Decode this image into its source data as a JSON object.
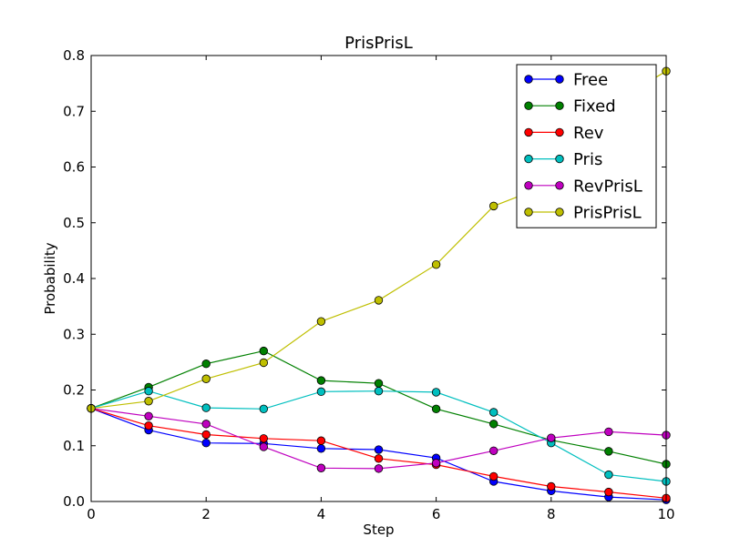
{
  "chart_data": {
    "type": "line",
    "title": "PrisPrisL",
    "xlabel": "Step",
    "ylabel": "Probability",
    "xlim": [
      0,
      10
    ],
    "ylim": [
      0,
      0.8
    ],
    "xticks": [
      "0",
      "2",
      "4",
      "6",
      "8",
      "10"
    ],
    "yticks": [
      "0.0",
      "0.1",
      "0.2",
      "0.3",
      "0.4",
      "0.5",
      "0.6",
      "0.7",
      "0.8"
    ],
    "grid": false,
    "legend_position": "top-right",
    "x": [
      0,
      1,
      2,
      3,
      4,
      5,
      6,
      7,
      8,
      9,
      10
    ],
    "series": [
      {
        "name": "Free",
        "color": "#0000ff",
        "values": [
          0.167,
          0.128,
          0.105,
          0.104,
          0.095,
          0.093,
          0.078,
          0.036,
          0.019,
          0.008,
          0.003
        ]
      },
      {
        "name": "Fixed",
        "color": "#008000",
        "values": [
          0.167,
          0.205,
          0.247,
          0.27,
          0.217,
          0.212,
          0.166,
          0.139,
          0.11,
          0.09,
          0.067
        ]
      },
      {
        "name": "Rev",
        "color": "#ff0000",
        "values": [
          0.167,
          0.136,
          0.12,
          0.113,
          0.109,
          0.077,
          0.066,
          0.045,
          0.027,
          0.017,
          0.006
        ]
      },
      {
        "name": "Pris",
        "color": "#00bfbf",
        "values": [
          0.167,
          0.198,
          0.168,
          0.166,
          0.197,
          0.198,
          0.196,
          0.16,
          0.105,
          0.048,
          0.036
        ]
      },
      {
        "name": "RevPrisL",
        "color": "#bf00bf",
        "values": [
          0.167,
          0.153,
          0.139,
          0.098,
          0.06,
          0.059,
          0.069,
          0.091,
          0.114,
          0.125,
          0.119
        ]
      },
      {
        "name": "PrisPrisL",
        "color": "#bfbf00",
        "values": [
          0.167,
          0.18,
          0.22,
          0.249,
          0.323,
          0.361,
          0.425,
          0.53,
          0.57,
          0.71,
          0.772
        ]
      }
    ]
  }
}
